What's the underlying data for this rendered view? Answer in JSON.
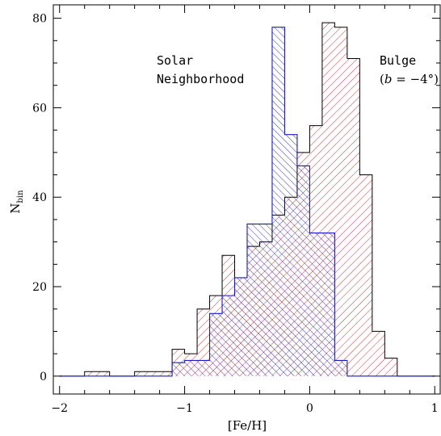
{
  "chart_data": {
    "type": "histogram",
    "xlabel": "[Fe/H]",
    "ylabel": "N",
    "ylabel_sub": "bin",
    "xlim": [
      -2.05,
      1.05
    ],
    "ylim": [
      -4,
      83
    ],
    "xticks": [
      -2,
      -1,
      0,
      1
    ],
    "xtick_labels": [
      "−2",
      "−1",
      "0",
      "1"
    ],
    "yticks": [
      0,
      20,
      40,
      60,
      80
    ],
    "ytick_labels": [
      "0",
      "20",
      "40",
      "60",
      "80"
    ],
    "series": [
      {
        "name": "Bulge (b=−4°)",
        "color": "#cc2222",
        "hatch": "forward",
        "bin_edges": [
          -2.0,
          -1.8,
          -1.6,
          -1.4,
          -1.3,
          -1.1,
          -1.0,
          -0.9,
          -0.8,
          -0.7,
          -0.6,
          -0.5,
          -0.4,
          -0.3,
          -0.2,
          -0.1,
          0.0,
          0.1,
          0.2,
          0.3,
          0.4,
          0.5,
          0.6,
          0.7,
          1.0
        ],
        "counts": [
          0,
          1,
          0,
          1,
          1,
          6,
          5,
          15,
          18,
          27,
          22,
          29,
          30,
          36,
          40,
          50,
          56,
          79,
          78,
          71,
          45,
          10,
          4,
          0
        ]
      },
      {
        "name": "Solar Neighborhood",
        "color": "#2222cc",
        "hatch": "backward",
        "bin_edges": [
          -2.0,
          -1.1,
          -1.0,
          -0.8,
          -0.7,
          -0.6,
          -0.5,
          -0.3,
          -0.2,
          -0.1,
          0.0,
          0.2,
          0.3,
          1.0
        ],
        "counts": [
          0,
          3,
          3.5,
          14,
          18,
          22,
          34,
          78,
          54,
          47,
          32,
          3.5,
          0
        ]
      }
    ],
    "annotations": {
      "solar_line1": "Solar",
      "solar_line2": "Neighborhood",
      "bulge_line1": "Bulge",
      "bulge_open": "(",
      "bulge_b": "b",
      "bulge_eq": " = −4°)"
    }
  }
}
